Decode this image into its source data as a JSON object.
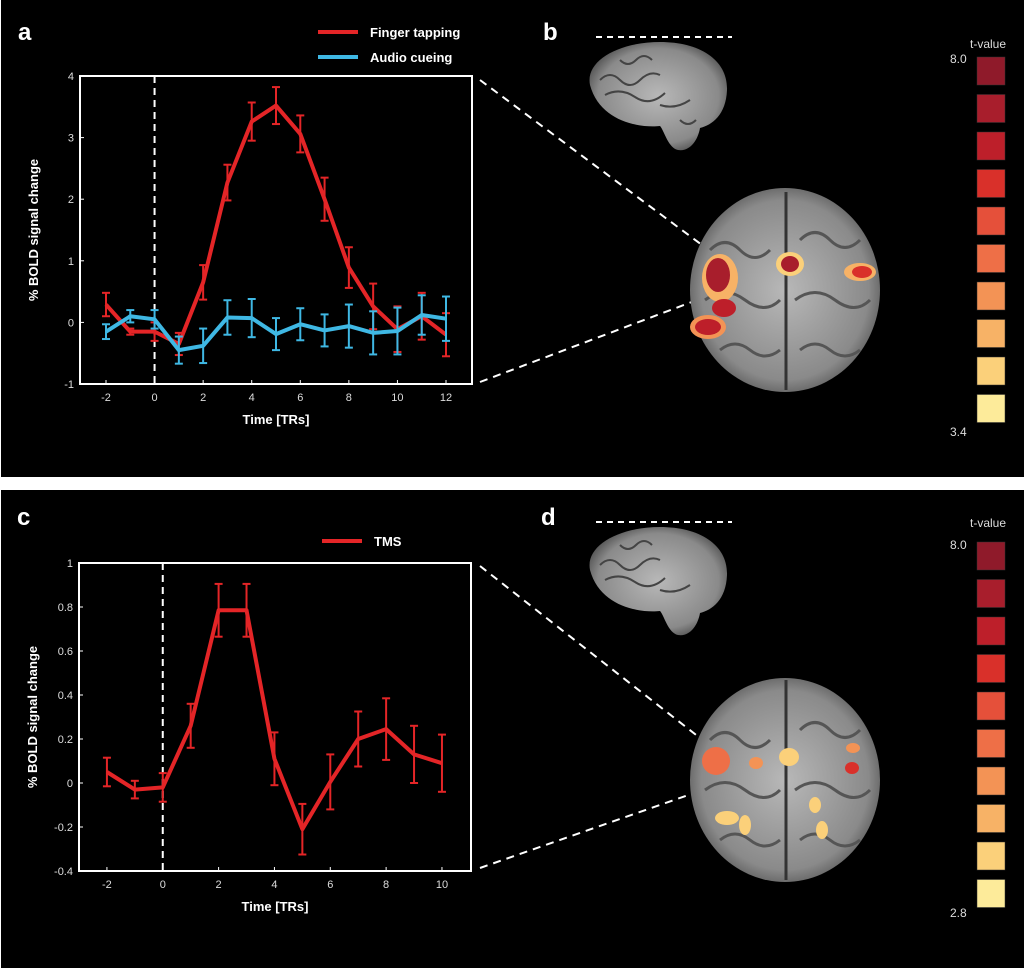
{
  "panels": {
    "a": {
      "letter": "a"
    },
    "b": {
      "letter": "b",
      "colorbar": {
        "title": "t-value",
        "max_label": "8.0",
        "min_label": "3.4"
      }
    },
    "c": {
      "letter": "c"
    },
    "d": {
      "letter": "d",
      "colorbar": {
        "title": "t-value",
        "max_label": "8.0",
        "min_label": "2.8"
      }
    }
  },
  "colorbar_colors": [
    "#8f1a2a",
    "#a81e2c",
    "#bd1f2a",
    "#d9302a",
    "#e5503a",
    "#ee6f47",
    "#f39355",
    "#f7b266",
    "#fbd07a",
    "#fdeb9a"
  ],
  "chart_data": [
    {
      "id": "a",
      "type": "line",
      "xlabel": "Time [TRs]",
      "ylabel": "% BOLD signal change",
      "xlim": [
        -3.07,
        13.07
      ],
      "ylim": [
        -1,
        4
      ],
      "xticks": [
        -2,
        0,
        2,
        4,
        6,
        8,
        10,
        12
      ],
      "yticks": [
        -1,
        0,
        1,
        2,
        3,
        4
      ],
      "vline_x": 0,
      "grid": false,
      "legend_placement": "top-center-outside",
      "x": [
        -2,
        -1,
        0,
        1,
        2,
        3,
        4,
        5,
        6,
        7,
        8,
        9,
        10,
        11,
        12
      ],
      "series": [
        {
          "name": "Finger tapping",
          "color": "#e42527",
          "values": [
            0.29,
            -0.15,
            -0.15,
            -0.35,
            0.65,
            2.27,
            3.26,
            3.52,
            3.06,
            2.0,
            0.89,
            0.26,
            -0.11,
            0.1,
            -0.2
          ],
          "errors": [
            0.19,
            0.05,
            0.15,
            0.18,
            0.28,
            0.29,
            0.31,
            0.3,
            0.3,
            0.35,
            0.33,
            0.37,
            0.37,
            0.38,
            0.35
          ]
        },
        {
          "name": "Audio cueing",
          "color": "#3fb8e4",
          "values": [
            -0.15,
            0.1,
            0.05,
            -0.45,
            -0.38,
            0.08,
            0.07,
            -0.19,
            -0.03,
            -0.13,
            -0.06,
            -0.17,
            -0.14,
            0.12,
            0.06
          ],
          "errors": [
            0.12,
            0.1,
            0.15,
            0.22,
            0.28,
            0.28,
            0.31,
            0.26,
            0.26,
            0.26,
            0.35,
            0.35,
            0.38,
            0.32,
            0.36
          ]
        }
      ]
    },
    {
      "id": "c",
      "type": "line",
      "xlabel": "Time [TRs]",
      "ylabel": "% BOLD signal change",
      "xlim": [
        -3,
        11.04
      ],
      "ylim": [
        -0.4,
        1
      ],
      "xticks": [
        -2,
        0,
        2,
        4,
        6,
        8,
        10
      ],
      "yticks": [
        -0.4,
        -0.2,
        0,
        0.2,
        0.4,
        0.6,
        0.8,
        1
      ],
      "ytick_labels": [
        "-0.4",
        "-0.2",
        "0",
        "0.2",
        "0.4",
        "0.6",
        "0.8",
        "1"
      ],
      "vline_x": 0,
      "grid": false,
      "legend_placement": "top-center-outside",
      "x": [
        -2,
        -1,
        0,
        1,
        2,
        3,
        4,
        5,
        6,
        7,
        8,
        9,
        10
      ],
      "series": [
        {
          "name": "TMS",
          "color": "#e42527",
          "values": [
            0.05,
            -0.03,
            -0.02,
            0.26,
            0.785,
            0.785,
            0.11,
            -0.21,
            0.005,
            0.2,
            0.245,
            0.13,
            0.09
          ],
          "errors": [
            0.065,
            0.04,
            0.065,
            0.1,
            0.12,
            0.12,
            0.12,
            0.115,
            0.125,
            0.125,
            0.14,
            0.13,
            0.13
          ]
        }
      ]
    }
  ]
}
